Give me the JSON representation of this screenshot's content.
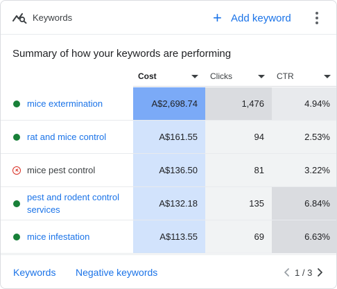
{
  "header": {
    "title": "Keywords",
    "add_label": "Add keyword"
  },
  "summary": "Summary of how your keywords are performing",
  "columns": {
    "cost": "Cost",
    "clicks": "Clicks",
    "ctr": "CTR"
  },
  "rows": [
    {
      "keyword": "mice extermination",
      "status": "enabled",
      "cost": "A$2,698.74",
      "clicks": "1,476",
      "ctr": "4.94%"
    },
    {
      "keyword": "rat and mice control",
      "status": "enabled",
      "cost": "A$161.55",
      "clicks": "94",
      "ctr": "2.53%"
    },
    {
      "keyword": "mice pest control",
      "status": "not-eligible",
      "cost": "A$136.50",
      "clicks": "81",
      "ctr": "3.22%"
    },
    {
      "keyword": "pest and rodent control services",
      "status": "enabled",
      "cost": "A$132.18",
      "clicks": "135",
      "ctr": "6.84%"
    },
    {
      "keyword": "mice infestation",
      "status": "enabled",
      "cost": "A$113.55",
      "clicks": "69",
      "ctr": "6.63%"
    }
  ],
  "heat_colors": {
    "cost": [
      "#7baaf7",
      "#d2e3fc",
      "#d2e3fc",
      "#d2e3fc",
      "#d2e3fc"
    ],
    "clicks": [
      "#dadce0",
      "#f1f3f4",
      "#f1f3f4",
      "#f1f3f4",
      "#f1f3f4"
    ],
    "ctr": [
      "#e8eaed",
      "#f1f3f4",
      "#f1f3f4",
      "#dadce0",
      "#dadce0"
    ]
  },
  "status_colors": {
    "enabled": "#188038",
    "not-eligible": "#d93025"
  },
  "footer": {
    "keywords_link": "Keywords",
    "negative_link": "Negative keywords",
    "page": "1 / 3"
  },
  "icons": {
    "header": "keywords-icon",
    "add": "plus-icon",
    "menu": "more-vert-icon",
    "prev": "chevron-left-icon",
    "next": "chevron-right-icon"
  }
}
